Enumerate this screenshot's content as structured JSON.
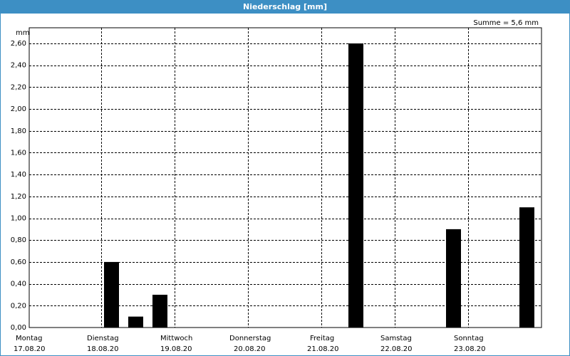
{
  "window": {
    "title": "Niederschlag [mm]"
  },
  "colors": {
    "titlebar": "#3d8fc4",
    "bar": "#000000",
    "grid": "#000000"
  },
  "chart_data": {
    "type": "bar",
    "title": "Niederschlag [mm]",
    "summary": "Summe = 5,6 mm",
    "ylabel": "mm",
    "ylim": [
      0,
      2.6
    ],
    "yticks": [
      "0,00",
      "0,20",
      "0,40",
      "0,60",
      "0,80",
      "1,00",
      "1,20",
      "1,40",
      "1,60",
      "1,80",
      "2,00",
      "2,20",
      "2,40",
      "2,60"
    ],
    "grid": true,
    "days": [
      {
        "name": "Montag",
        "date": "17.08.20"
      },
      {
        "name": "Dienstag",
        "date": "18.08.20"
      },
      {
        "name": "Mittwoch",
        "date": "19.08.20"
      },
      {
        "name": "Donnerstag",
        "date": "20.08.20"
      },
      {
        "name": "Freitag",
        "date": "21.08.20"
      },
      {
        "name": "Samstag",
        "date": "22.08.20"
      },
      {
        "name": "Sonntag",
        "date": "23.08.20"
      }
    ],
    "bars": [
      {
        "day": 1,
        "slot": 0,
        "value": 0.6
      },
      {
        "day": 1,
        "slot": 1,
        "value": 0.1
      },
      {
        "day": 1,
        "slot": 2,
        "value": 0.3
      },
      {
        "day": 4,
        "slot": 1,
        "value": 2.6
      },
      {
        "day": 5,
        "slot": 2,
        "value": 0.9
      },
      {
        "day": 6,
        "slot": 2,
        "value": 1.1
      }
    ]
  }
}
